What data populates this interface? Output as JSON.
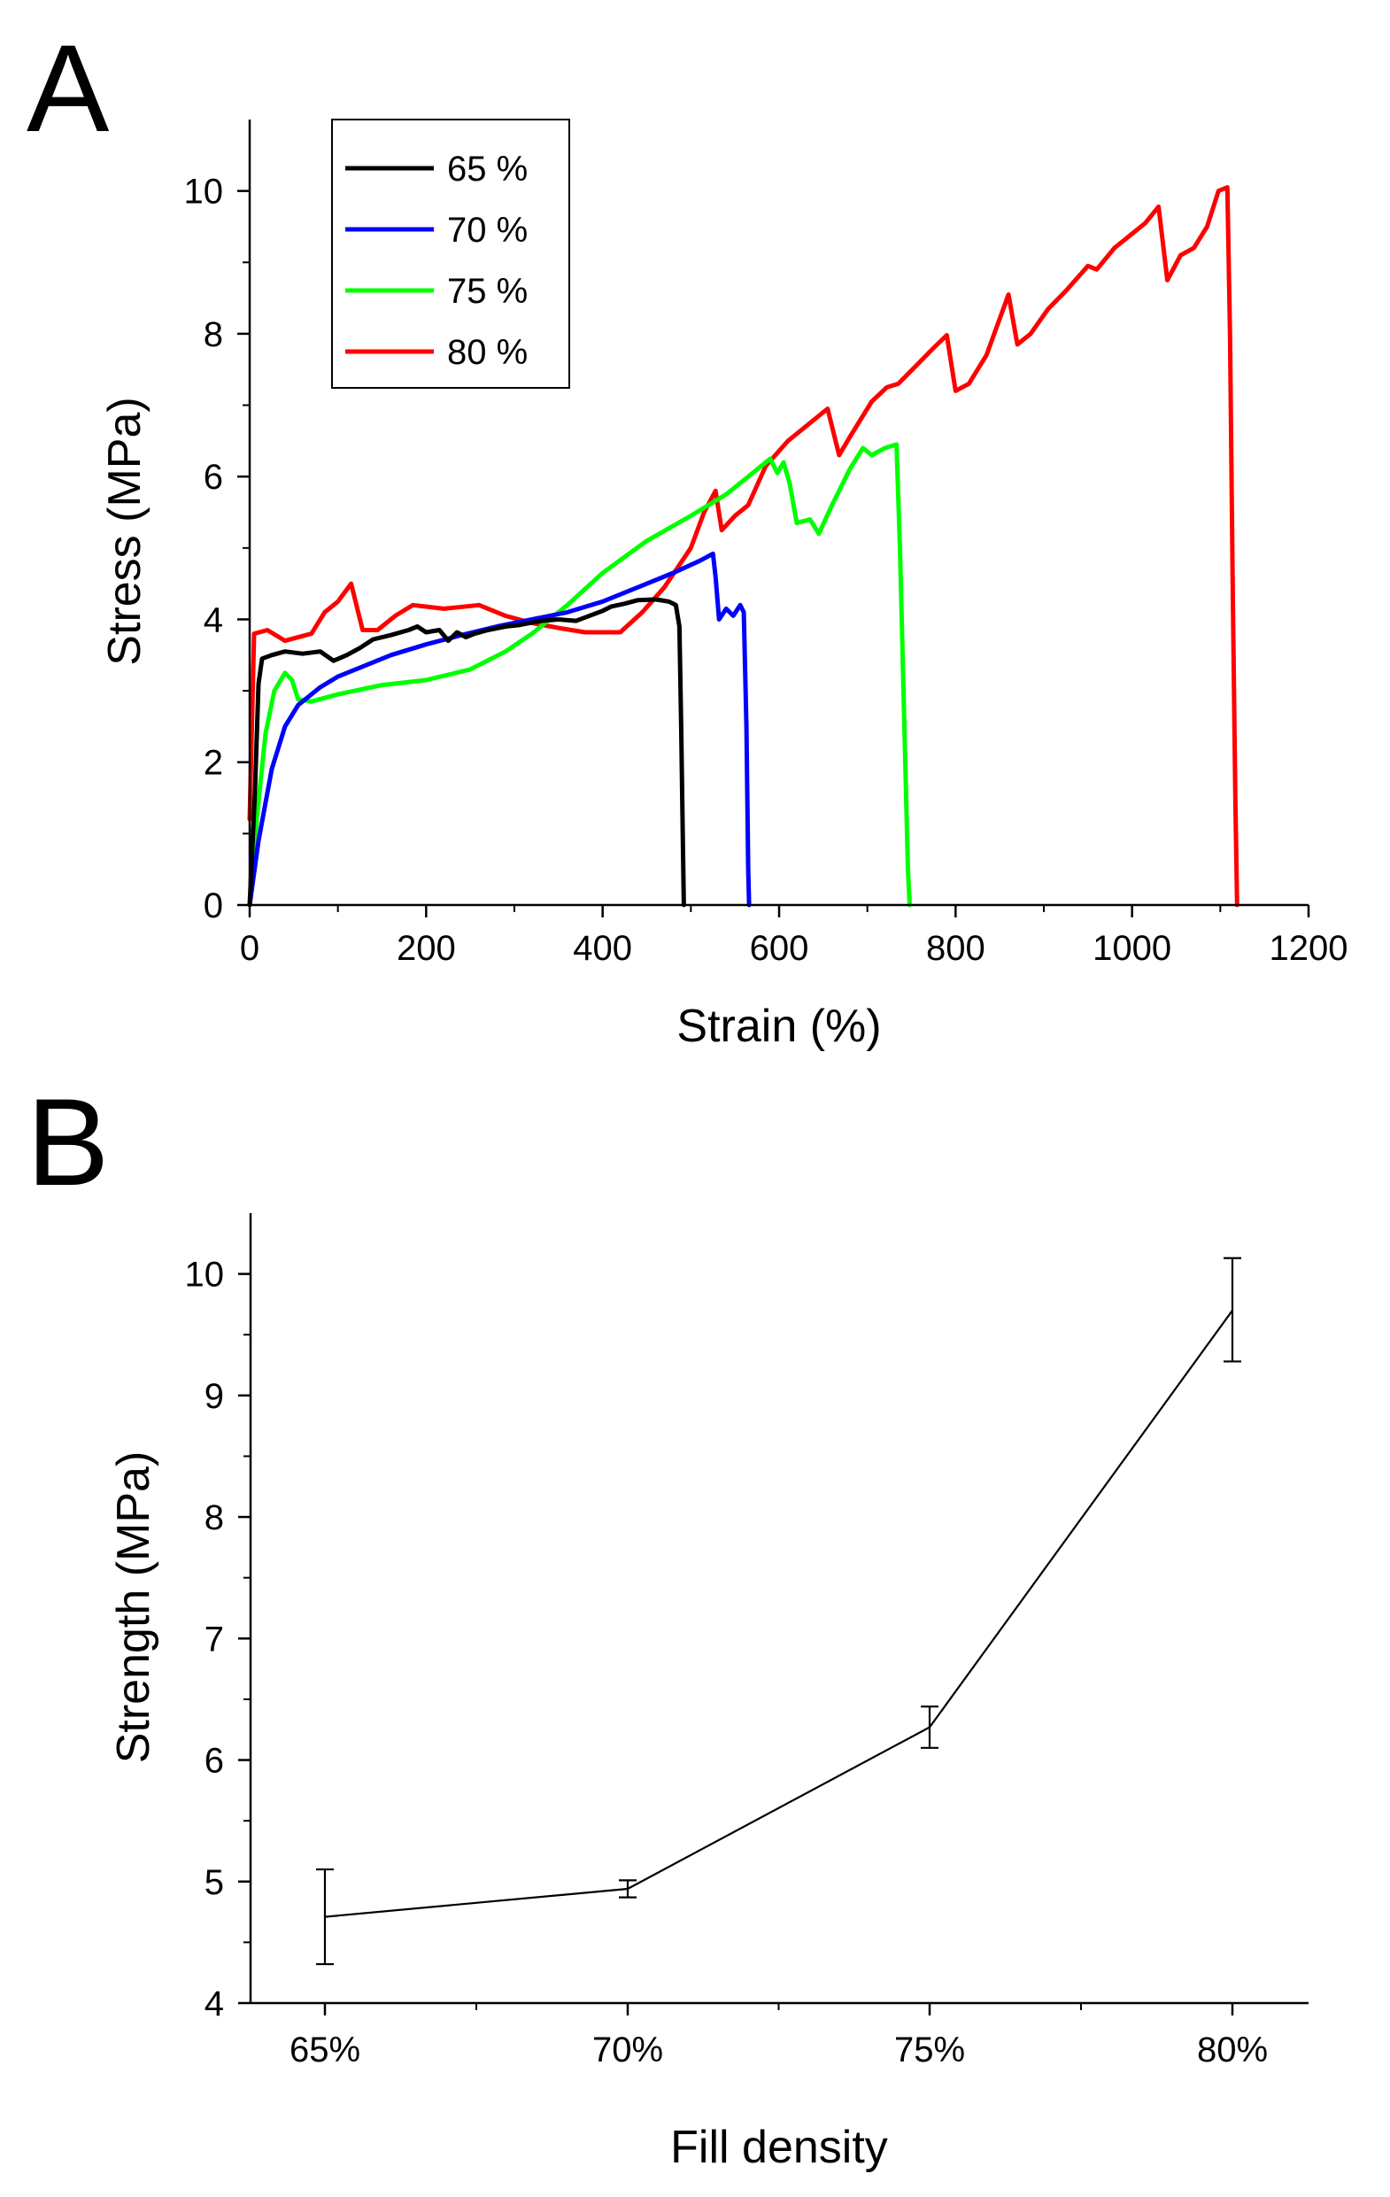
{
  "chart_data": [
    {
      "panel_label": "A",
      "type": "line",
      "xlabel": "Strain (%)",
      "ylabel": "Stress (MPa)",
      "xlim": [
        0,
        1200
      ],
      "ylim": [
        0,
        11
      ],
      "xticks": [
        0,
        200,
        400,
        600,
        800,
        1000,
        1200
      ],
      "yticks": [
        0,
        2,
        4,
        6,
        8,
        10
      ],
      "legend_position": "top-left",
      "series": [
        {
          "name": "65 %",
          "color": "#000000",
          "points": [
            [
              0,
              0
            ],
            [
              6,
              1.6
            ],
            [
              10,
              3.1
            ],
            [
              14,
              3.45
            ],
            [
              25,
              3.5
            ],
            [
              40,
              3.55
            ],
            [
              60,
              3.52
            ],
            [
              80,
              3.55
            ],
            [
              95,
              3.42
            ],
            [
              110,
              3.5
            ],
            [
              125,
              3.6
            ],
            [
              140,
              3.72
            ],
            [
              160,
              3.78
            ],
            [
              180,
              3.85
            ],
            [
              190,
              3.9
            ],
            [
              200,
              3.82
            ],
            [
              215,
              3.85
            ],
            [
              225,
              3.7
            ],
            [
              235,
              3.82
            ],
            [
              245,
              3.75
            ],
            [
              255,
              3.8
            ],
            [
              270,
              3.85
            ],
            [
              290,
              3.9
            ],
            [
              305,
              3.92
            ],
            [
              330,
              3.98
            ],
            [
              350,
              4.0
            ],
            [
              370,
              3.98
            ],
            [
              385,
              4.05
            ],
            [
              400,
              4.12
            ],
            [
              410,
              4.18
            ],
            [
              425,
              4.22
            ],
            [
              440,
              4.27
            ],
            [
              460,
              4.28
            ],
            [
              475,
              4.25
            ],
            [
              483,
              4.2
            ],
            [
              487,
              3.9
            ],
            [
              489,
              2.5
            ],
            [
              491,
              0.8
            ],
            [
              492,
              0
            ]
          ]
        },
        {
          "name": "70 %",
          "color": "#0000ff",
          "points": [
            [
              0,
              0
            ],
            [
              10,
              0.9
            ],
            [
              25,
              1.9
            ],
            [
              40,
              2.5
            ],
            [
              55,
              2.8
            ],
            [
              80,
              3.05
            ],
            [
              100,
              3.2
            ],
            [
              130,
              3.35
            ],
            [
              160,
              3.5
            ],
            [
              200,
              3.65
            ],
            [
              240,
              3.78
            ],
            [
              280,
              3.9
            ],
            [
              320,
              4.0
            ],
            [
              360,
              4.1
            ],
            [
              400,
              4.25
            ],
            [
              440,
              4.45
            ],
            [
              480,
              4.65
            ],
            [
              510,
              4.82
            ],
            [
              525,
              4.92
            ],
            [
              528,
              4.6
            ],
            [
              532,
              4.0
            ],
            [
              540,
              4.15
            ],
            [
              548,
              4.05
            ],
            [
              556,
              4.2
            ],
            [
              560,
              4.1
            ],
            [
              563,
              2.5
            ],
            [
              565,
              0.5
            ],
            [
              566,
              0
            ]
          ]
        },
        {
          "name": "75 %",
          "color": "#00ff00",
          "points": [
            [
              0,
              0
            ],
            [
              8,
              1.2
            ],
            [
              18,
              2.4
            ],
            [
              28,
              3.0
            ],
            [
              40,
              3.25
            ],
            [
              48,
              3.15
            ],
            [
              55,
              2.88
            ],
            [
              70,
              2.85
            ],
            [
              100,
              2.95
            ],
            [
              150,
              3.08
            ],
            [
              200,
              3.15
            ],
            [
              250,
              3.3
            ],
            [
              290,
              3.55
            ],
            [
              320,
              3.8
            ],
            [
              360,
              4.2
            ],
            [
              400,
              4.65
            ],
            [
              450,
              5.1
            ],
            [
              500,
              5.45
            ],
            [
              540,
              5.75
            ],
            [
              570,
              6.05
            ],
            [
              590,
              6.25
            ],
            [
              598,
              6.05
            ],
            [
              605,
              6.2
            ],
            [
              612,
              5.9
            ],
            [
              620,
              5.35
            ],
            [
              635,
              5.4
            ],
            [
              645,
              5.2
            ],
            [
              660,
              5.6
            ],
            [
              680,
              6.1
            ],
            [
              695,
              6.4
            ],
            [
              705,
              6.3
            ],
            [
              720,
              6.4
            ],
            [
              733,
              6.45
            ],
            [
              737,
              5.0
            ],
            [
              742,
              2.5
            ],
            [
              746,
              0.5
            ],
            [
              748,
              0
            ]
          ]
        },
        {
          "name": "80 %",
          "color": "#ff0000",
          "points": [
            [
              0,
              1.2
            ],
            [
              5,
              3.8
            ],
            [
              20,
              3.85
            ],
            [
              40,
              3.7
            ],
            [
              55,
              3.75
            ],
            [
              70,
              3.8
            ],
            [
              85,
              4.1
            ],
            [
              100,
              4.25
            ],
            [
              115,
              4.5
            ],
            [
              128,
              3.85
            ],
            [
              145,
              3.85
            ],
            [
              165,
              4.05
            ],
            [
              185,
              4.2
            ],
            [
              220,
              4.15
            ],
            [
              260,
              4.2
            ],
            [
              290,
              4.05
            ],
            [
              320,
              3.95
            ],
            [
              350,
              3.88
            ],
            [
              380,
              3.82
            ],
            [
              420,
              3.82
            ],
            [
              445,
              4.1
            ],
            [
              470,
              4.45
            ],
            [
              500,
              5.0
            ],
            [
              515,
              5.5
            ],
            [
              528,
              5.8
            ],
            [
              535,
              5.25
            ],
            [
              550,
              5.45
            ],
            [
              565,
              5.6
            ],
            [
              585,
              6.15
            ],
            [
              610,
              6.5
            ],
            [
              635,
              6.75
            ],
            [
              655,
              6.95
            ],
            [
              668,
              6.3
            ],
            [
              680,
              6.55
            ],
            [
              705,
              7.05
            ],
            [
              722,
              7.25
            ],
            [
              735,
              7.3
            ],
            [
              755,
              7.55
            ],
            [
              775,
              7.8
            ],
            [
              790,
              7.98
            ],
            [
              800,
              7.2
            ],
            [
              815,
              7.3
            ],
            [
              835,
              7.7
            ],
            [
              860,
              8.55
            ],
            [
              870,
              7.85
            ],
            [
              885,
              8.0
            ],
            [
              905,
              8.35
            ],
            [
              925,
              8.6
            ],
            [
              950,
              8.95
            ],
            [
              960,
              8.9
            ],
            [
              980,
              9.2
            ],
            [
              1000,
              9.4
            ],
            [
              1015,
              9.55
            ],
            [
              1030,
              9.78
            ],
            [
              1040,
              8.75
            ],
            [
              1055,
              9.1
            ],
            [
              1070,
              9.2
            ],
            [
              1085,
              9.5
            ],
            [
              1098,
              10.0
            ],
            [
              1108,
              10.05
            ],
            [
              1111,
              8.0
            ],
            [
              1114,
              4.5
            ],
            [
              1117,
              1.5
            ],
            [
              1119,
              0
            ]
          ]
        }
      ]
    },
    {
      "panel_label": "B",
      "type": "line",
      "xlabel": "Fill density",
      "ylabel": "Strength (MPa)",
      "ylim": [
        4,
        10.5
      ],
      "yticks": [
        4,
        5,
        6,
        7,
        8,
        9,
        10
      ],
      "categories": [
        "65%",
        "70%",
        "75%",
        "80%"
      ],
      "values": [
        4.71,
        4.94,
        6.27,
        9.7
      ],
      "error_low": [
        4.32,
        4.87,
        6.1,
        9.28
      ],
      "error_high": [
        5.1,
        5.01,
        6.44,
        10.13
      ],
      "color": "#000000"
    }
  ]
}
